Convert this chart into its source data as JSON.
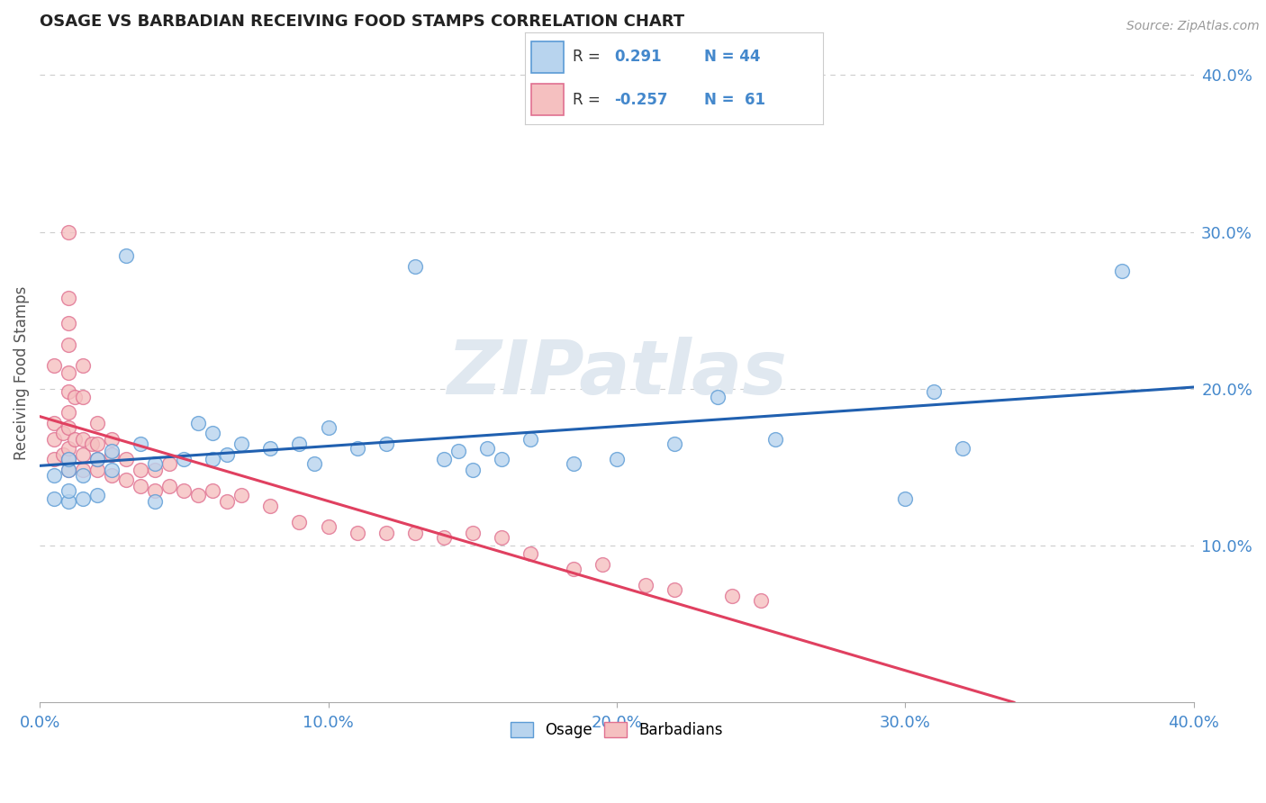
{
  "title": "OSAGE VS BARBADIAN RECEIVING FOOD STAMPS CORRELATION CHART",
  "source": "Source: ZipAtlas.com",
  "ylabel": "Receiving Food Stamps",
  "xlim": [
    0.0,
    0.4
  ],
  "ylim": [
    0.0,
    0.42
  ],
  "xticks": [
    0.0,
    0.1,
    0.2,
    0.3,
    0.4
  ],
  "xticklabels": [
    "0.0%",
    "10.0%",
    "20.0%",
    "30.0%",
    "40.0%"
  ],
  "yticks_right": [
    0.1,
    0.2,
    0.3,
    0.4
  ],
  "yticklabels_right": [
    "10.0%",
    "20.0%",
    "30.0%",
    "40.0%"
  ],
  "watermark": "ZIPatlas",
  "osage_face": "#b8d4ee",
  "osage_edge": "#5b9bd5",
  "barbadian_face": "#f5c0c0",
  "barbadian_edge": "#e07090",
  "trend_blue": "#2060b0",
  "trend_pink": "#e04060",
  "grid_color": "#cccccc",
  "tick_label_color": "#4488cc",
  "title_color": "#222222",
  "legend_border": "#cccccc",
  "osage_x": [
    0.005,
    0.005,
    0.01,
    0.01,
    0.01,
    0.01,
    0.015,
    0.015,
    0.02,
    0.02,
    0.025,
    0.025,
    0.03,
    0.035,
    0.04,
    0.04,
    0.05,
    0.055,
    0.06,
    0.06,
    0.065,
    0.07,
    0.08,
    0.09,
    0.095,
    0.1,
    0.11,
    0.12,
    0.13,
    0.14,
    0.145,
    0.15,
    0.155,
    0.16,
    0.17,
    0.185,
    0.2,
    0.22,
    0.235,
    0.255,
    0.3,
    0.31,
    0.32,
    0.375
  ],
  "osage_y": [
    0.13,
    0.145,
    0.128,
    0.135,
    0.148,
    0.155,
    0.13,
    0.145,
    0.132,
    0.155,
    0.148,
    0.16,
    0.285,
    0.165,
    0.128,
    0.152,
    0.155,
    0.178,
    0.155,
    0.172,
    0.158,
    0.165,
    0.162,
    0.165,
    0.152,
    0.175,
    0.162,
    0.165,
    0.278,
    0.155,
    0.16,
    0.148,
    0.162,
    0.155,
    0.168,
    0.152,
    0.155,
    0.165,
    0.195,
    0.168,
    0.13,
    0.198,
    0.162,
    0.275
  ],
  "barbadian_x": [
    0.005,
    0.005,
    0.005,
    0.005,
    0.008,
    0.008,
    0.01,
    0.01,
    0.01,
    0.01,
    0.01,
    0.01,
    0.01,
    0.01,
    0.01,
    0.01,
    0.01,
    0.012,
    0.012,
    0.015,
    0.015,
    0.015,
    0.015,
    0.015,
    0.018,
    0.02,
    0.02,
    0.02,
    0.02,
    0.025,
    0.025,
    0.025,
    0.03,
    0.03,
    0.035,
    0.035,
    0.04,
    0.04,
    0.045,
    0.045,
    0.05,
    0.055,
    0.06,
    0.065,
    0.07,
    0.08,
    0.09,
    0.1,
    0.11,
    0.12,
    0.13,
    0.14,
    0.15,
    0.16,
    0.17,
    0.185,
    0.195,
    0.21,
    0.22,
    0.24,
    0.25
  ],
  "barbadian_y": [
    0.155,
    0.168,
    0.178,
    0.215,
    0.158,
    0.172,
    0.148,
    0.155,
    0.162,
    0.175,
    0.185,
    0.198,
    0.21,
    0.228,
    0.242,
    0.258,
    0.3,
    0.168,
    0.195,
    0.148,
    0.158,
    0.168,
    0.195,
    0.215,
    0.165,
    0.148,
    0.155,
    0.165,
    0.178,
    0.145,
    0.158,
    0.168,
    0.142,
    0.155,
    0.138,
    0.148,
    0.135,
    0.148,
    0.138,
    0.152,
    0.135,
    0.132,
    0.135,
    0.128,
    0.132,
    0.125,
    0.115,
    0.112,
    0.108,
    0.108,
    0.108,
    0.105,
    0.108,
    0.105,
    0.095,
    0.085,
    0.088,
    0.075,
    0.072,
    0.068,
    0.065
  ]
}
